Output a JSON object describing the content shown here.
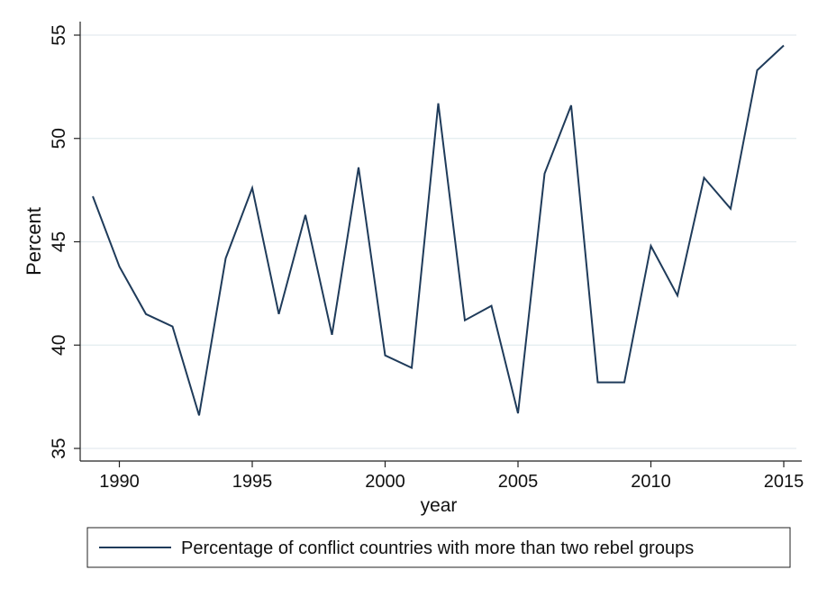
{
  "chart_data": {
    "type": "line",
    "title": "",
    "xlabel": "year",
    "ylabel": "Percent",
    "xlim": [
      1989,
      2015
    ],
    "ylim": [
      35,
      55
    ],
    "x_ticks": [
      1990,
      1995,
      2000,
      2005,
      2010,
      2015
    ],
    "x_tick_labels": [
      "1990",
      "1995",
      "2000",
      "2005",
      "2010",
      "2015"
    ],
    "y_ticks": [
      35,
      40,
      45,
      50,
      55
    ],
    "y_tick_labels": [
      "35",
      "40",
      "45",
      "50",
      "55"
    ],
    "grid": "horizontal",
    "legend_position": "bottom",
    "series": [
      {
        "name": "Percentage of conflict countries with more than two rebel groups",
        "color": "#1f3b5a",
        "x": [
          1989,
          1990,
          1991,
          1992,
          1993,
          1994,
          1995,
          1996,
          1997,
          1998,
          1999,
          2000,
          2001,
          2002,
          2003,
          2004,
          2005,
          2006,
          2007,
          2008,
          2009,
          2010,
          2011,
          2012,
          2013,
          2014,
          2015
        ],
        "values": [
          47.2,
          43.8,
          41.5,
          40.9,
          36.6,
          44.2,
          47.6,
          41.5,
          46.3,
          40.5,
          48.6,
          39.5,
          38.9,
          51.7,
          41.2,
          41.9,
          36.7,
          48.3,
          51.6,
          38.2,
          38.2,
          44.8,
          42.4,
          48.1,
          46.6,
          53.3,
          54.5
        ]
      }
    ]
  }
}
